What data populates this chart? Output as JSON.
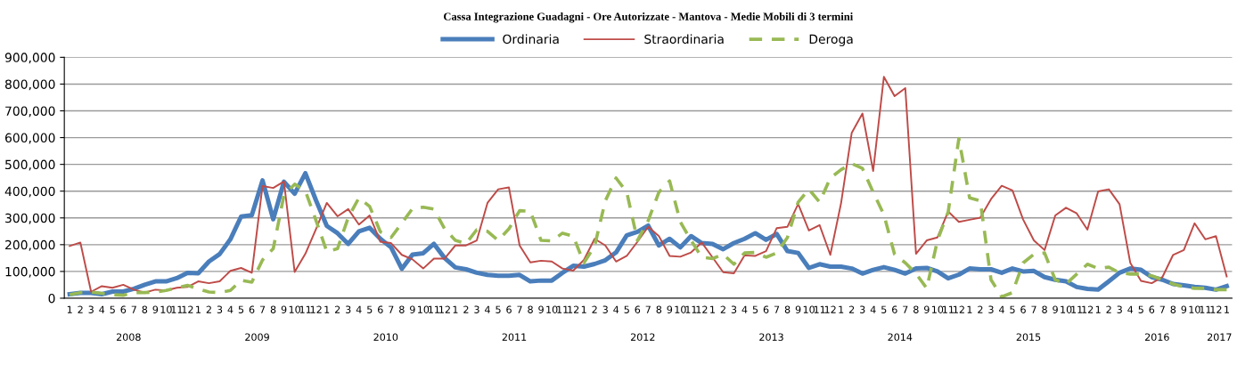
{
  "chart_data": {
    "type": "line",
    "title": "Cassa Integrazione Guadagni - Ore Autorizzate - Mantova - Medie Mobili di 3 termini",
    "categories": [
      "1",
      "2",
      "3",
      "4",
      "5",
      "6",
      "7",
      "8",
      "9",
      "10",
      "11",
      "12",
      "1",
      "2",
      "3",
      "4",
      "5",
      "6",
      "7",
      "8",
      "9",
      "10",
      "11",
      "12",
      "1",
      "2",
      "3",
      "4",
      "5",
      "6",
      "7",
      "8",
      "9",
      "10",
      "11",
      "12",
      "1",
      "2",
      "3",
      "4",
      "5",
      "6",
      "7",
      "8",
      "9",
      "10",
      "11",
      "12",
      "1",
      "2",
      "3",
      "4",
      "5",
      "6",
      "7",
      "8",
      "9",
      "10",
      "11",
      "12",
      "1",
      "2",
      "3",
      "4",
      "5",
      "6",
      "7",
      "8",
      "9",
      "10",
      "11",
      "12",
      "1",
      "2",
      "3",
      "4",
      "5",
      "6",
      "7",
      "8",
      "9",
      "10",
      "11",
      "12",
      "1",
      "2",
      "3",
      "4",
      "5",
      "6",
      "7",
      "8",
      "9",
      "10",
      "11",
      "12",
      "1",
      "2",
      "3",
      "4",
      "5",
      "6",
      "7",
      "8",
      "9",
      "10",
      "11",
      "12",
      "1"
    ],
    "series": [
      {
        "name": "Ordinaria",
        "color": "#4a7ebb",
        "line_style": "solid",
        "values": [
          15000,
          20000,
          20000,
          15000,
          25000,
          25000,
          35000,
          50000,
          63000,
          63000,
          75000,
          95000,
          93000,
          137000,
          165000,
          220000,
          305000,
          310000,
          440000,
          295000,
          435000,
          390000,
          467000,
          365000,
          270000,
          243000,
          203000,
          250000,
          263000,
          222000,
          190000,
          110000,
          163000,
          168000,
          203000,
          150000,
          115000,
          108000,
          95000,
          87000,
          84000,
          84000,
          87000,
          63000,
          66000,
          66000,
          95000,
          121000,
          118000,
          128000,
          142000,
          171000,
          235000,
          248000,
          271000,
          197000,
          222000,
          190000,
          232000,
          206000,
          203000,
          183000,
          206000,
          222000,
          243000,
          218000,
          240000,
          176000,
          169000,
          113000,
          127000,
          118000,
          118000,
          111000,
          92000,
          106000,
          116000,
          106000,
          92000,
          111000,
          113000,
          100000,
          74000,
          88000,
          111000,
          108000,
          108000,
          95000,
          111000,
          100000,
          102000,
          79000,
          69000,
          63000,
          42000,
          35000,
          32000,
          63000,
          95000,
          111000,
          106000,
          79000,
          69000,
          53000,
          48000,
          42000,
          39000,
          32000,
          45000
        ]
      },
      {
        "name": "Straordinaria",
        "color": "#be4b48",
        "line_style": "solid",
        "values": [
          195000,
          208000,
          24000,
          45000,
          39000,
          50000,
          32000,
          21000,
          32000,
          29000,
          39000,
          42000,
          63000,
          56000,
          63000,
          102000,
          113000,
          95000,
          419000,
          412000,
          436000,
          98000,
          166000,
          259000,
          356000,
          306000,
          333000,
          275000,
          309000,
          211000,
          206000,
          162000,
          145000,
          111000,
          148000,
          148000,
          197000,
          197000,
          216000,
          356000,
          407000,
          414000,
          197000,
          134000,
          140000,
          137000,
          111000,
          103000,
          143000,
          222000,
          197000,
          137000,
          158000,
          211000,
          267000,
          232000,
          158000,
          155000,
          171000,
          208000,
          153000,
          97000,
          93000,
          160000,
          158000,
          176000,
          262000,
          267000,
          352000,
          253000,
          273000,
          162000,
          354000,
          618000,
          690000,
          475000,
          827000,
          755000,
          785000,
          166000,
          216000,
          227000,
          324000,
          285000,
          293000,
          301000,
          370000,
          420000,
          403000,
          294000,
          216000,
          180000,
          309000,
          338000,
          317000,
          256000,
          399000,
          407000,
          351000,
          132000,
          65000,
          56000,
          79000,
          162000,
          180000,
          280000,
          220000,
          232000,
          81000
        ]
      },
      {
        "name": "Deroga",
        "color": "#98b954",
        "line_style": "dashed",
        "values": [
          13000,
          21000,
          23000,
          18000,
          13000,
          11000,
          21000,
          21000,
          23000,
          29000,
          39000,
          48000,
          35000,
          23000,
          21000,
          29000,
          67000,
          60000,
          143000,
          185000,
          385000,
          426000,
          401000,
          290000,
          174000,
          185000,
          301000,
          375000,
          343000,
          248000,
          227000,
          280000,
          335000,
          340000,
          333000,
          259000,
          216000,
          204000,
          256000,
          250000,
          216000,
          259000,
          327000,
          325000,
          216000,
          214000,
          243000,
          232000,
          132000,
          195000,
          364000,
          449000,
          396000,
          216000,
          290000,
          396000,
          438000,
          285000,
          216000,
          153000,
          148000,
          164000,
          127000,
          169000,
          171000,
          153000,
          169000,
          227000,
          359000,
          407000,
          359000,
          449000,
          480000,
          503000,
          485000,
          396000,
          312000,
          164000,
          132000,
          92000,
          37000,
          216000,
          322000,
          597000,
          375000,
          364000,
          69000,
          5000,
          21000,
          132000,
          164000,
          169000,
          69000,
          53000,
          90000,
          127000,
          111000,
          116000,
          95000,
          90000,
          90000,
          84000,
          69000,
          53000,
          42000,
          37000,
          37000,
          32000,
          32000
        ]
      }
    ],
    "ylim": [
      0,
      900000
    ],
    "yticks": [
      {
        "value": 0,
        "label": "0"
      },
      {
        "value": 100000,
        "label": "100,000"
      },
      {
        "value": 200000,
        "label": "200,000"
      },
      {
        "value": 300000,
        "label": "300,000"
      },
      {
        "value": 400000,
        "label": "400,000"
      },
      {
        "value": 500000,
        "label": "500,000"
      },
      {
        "value": 600000,
        "label": "600,000"
      },
      {
        "value": 700000,
        "label": "700,000"
      },
      {
        "value": 800000,
        "label": "800,000"
      },
      {
        "value": 900000,
        "label": "900,000"
      }
    ],
    "annotations": [
      "2008",
      "2009",
      "2010",
      "2011",
      "2012",
      "2013",
      "2014",
      "2015",
      "2016",
      "2017"
    ],
    "grid": "y",
    "legend": "top",
    "marker": "none"
  }
}
